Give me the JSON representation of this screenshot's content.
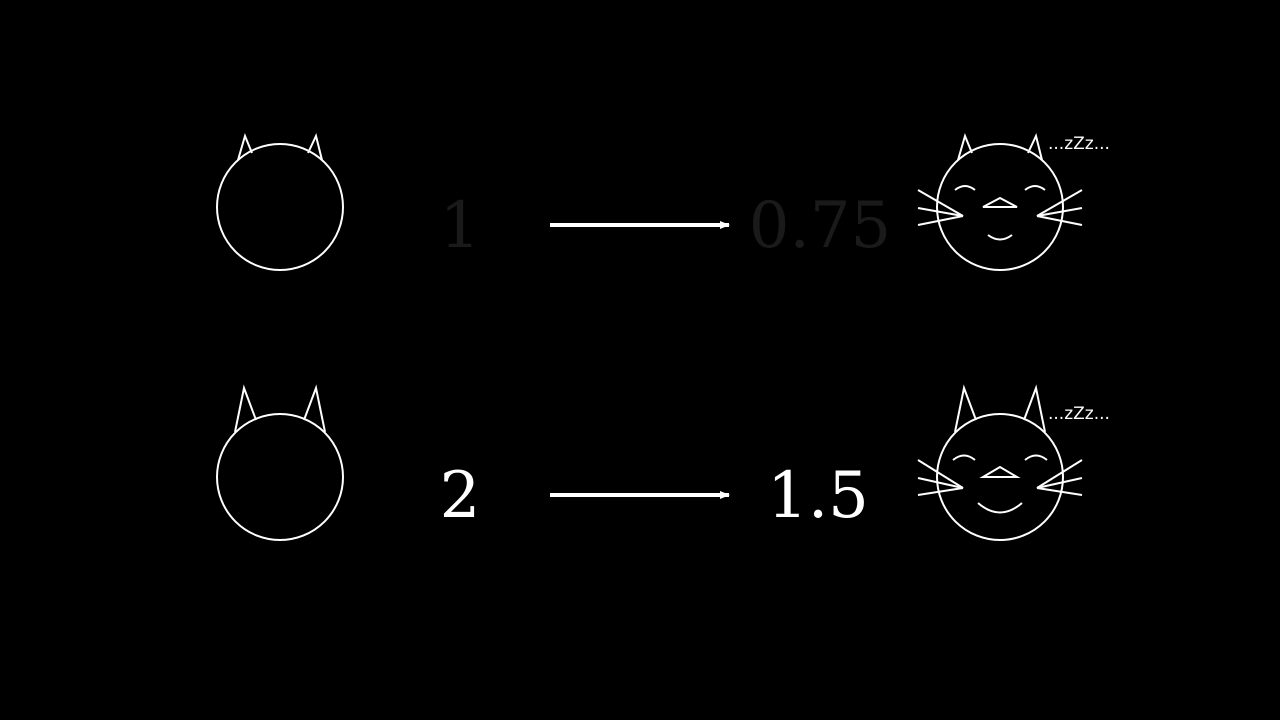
{
  "rows": [
    {
      "input_value": "1",
      "output_value": "0.75",
      "sleep_text": "...zZz...",
      "faded": true
    },
    {
      "input_value": "2",
      "output_value": "1.5",
      "sleep_text": "...zZz...",
      "faded": false
    }
  ],
  "colors": {
    "background": "#000000",
    "stroke": "#ffffff",
    "faded_text": "#1a1a1a"
  }
}
